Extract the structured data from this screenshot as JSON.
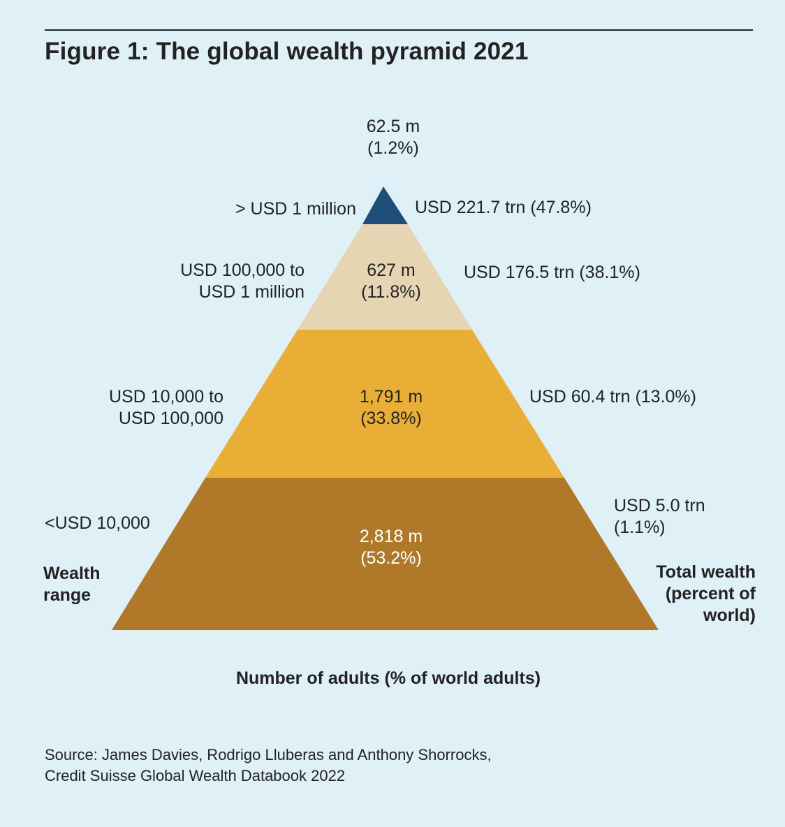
{
  "title": "Figure 1: The global wealth pyramid 2021",
  "chart_data": {
    "type": "pyramid",
    "tiers": [
      {
        "wealth_range": "> USD 1 million",
        "adults": "62.5 m",
        "adults_pct": "(1.2%)",
        "total_wealth": "USD 221.7 trn (47.8%)",
        "color": "#1f4e7a"
      },
      {
        "wealth_range": [
          "USD 100,000 to",
          "USD 1 million"
        ],
        "adults": "627 m",
        "adults_pct": "(11.8%)",
        "total_wealth": "USD 176.5 trn (38.1%)",
        "color": "#e6d5b3"
      },
      {
        "wealth_range": [
          "USD 10,000 to",
          "USD 100,000"
        ],
        "adults": "1,791 m",
        "adults_pct": "(33.8%)",
        "total_wealth": "USD 60.4 trn (13.0%)",
        "color": "#e9ae35"
      },
      {
        "wealth_range": "<USD 10,000",
        "adults": "2,818 m",
        "adults_pct": "(53.2%)",
        "total_wealth": [
          "USD 5.0 trn",
          "(1.1%)"
        ],
        "color": "#b0792a"
      }
    ],
    "left_axis_label": [
      "Wealth",
      "range"
    ],
    "right_axis_label": [
      "Total wealth",
      "(percent of",
      "world)"
    ],
    "x_label": "Number of adults (% of world adults)"
  },
  "source": [
    "Source: James Davies, Rodrigo Lluberas and Anthony Shorrocks,",
    "Credit Suisse Global Wealth Databook 2022"
  ]
}
